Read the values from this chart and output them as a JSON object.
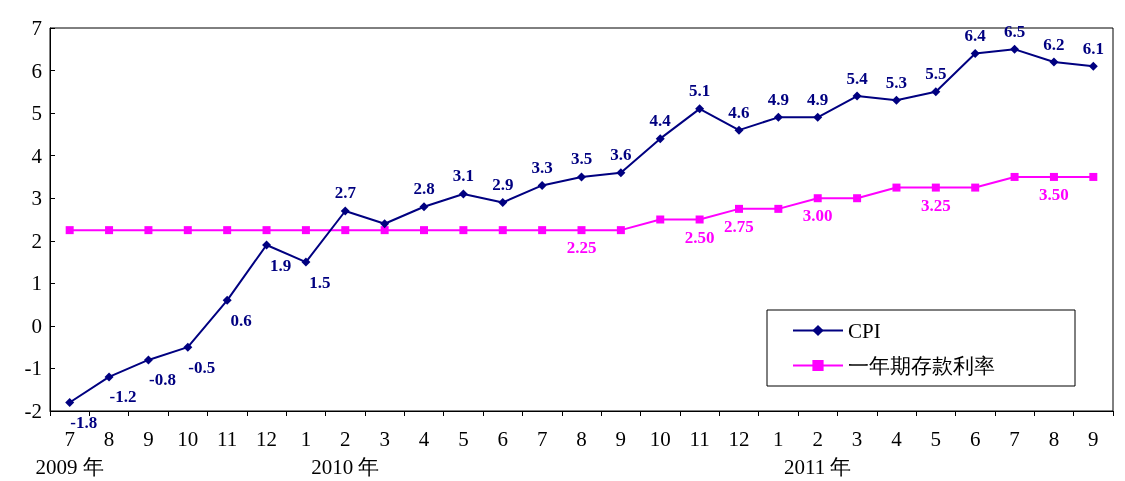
{
  "chart_data": {
    "type": "line",
    "categories": [
      "7\n2009 年",
      "8",
      "9",
      "10",
      "11",
      "12",
      "1",
      "2\n2010 年",
      "3",
      "4",
      "5",
      "6",
      "7",
      "8",
      "9",
      "10",
      "11",
      "12",
      "1",
      "2\n2011 年",
      "3",
      "4",
      "5",
      "6",
      "7",
      "8",
      "9"
    ],
    "series": [
      {
        "name": "CPI",
        "color": "#000080",
        "marker": "diamond",
        "values": [
          -1.8,
          -1.2,
          -0.8,
          -0.5,
          0.6,
          1.9,
          1.5,
          2.7,
          2.4,
          2.8,
          3.1,
          2.9,
          3.3,
          3.5,
          3.6,
          4.4,
          5.1,
          4.6,
          4.9,
          4.9,
          5.4,
          5.3,
          5.5,
          6.4,
          6.5,
          6.2,
          6.1
        ],
        "value_labels": [
          "-1.8",
          "-1.2",
          "-0.8",
          "-0.5",
          "0.6",
          "1.9",
          "1.5",
          "2.7",
          null,
          "2.8",
          "3.1",
          "2.9",
          "3.3",
          "3.5",
          "3.6",
          "4.4",
          "5.1",
          "4.6",
          "4.9",
          "4.9",
          "5.4",
          "5.3",
          "5.5",
          "6.4",
          "6.5",
          "6.2",
          "6.1"
        ]
      },
      {
        "name": "一年期存款利率",
        "color": "#ff00ff",
        "marker": "square",
        "values": [
          2.25,
          2.25,
          2.25,
          2.25,
          2.25,
          2.25,
          2.25,
          2.25,
          2.25,
          2.25,
          2.25,
          2.25,
          2.25,
          2.25,
          2.25,
          2.5,
          2.5,
          2.75,
          2.75,
          3.0,
          3.0,
          3.25,
          3.25,
          3.25,
          3.5,
          3.5,
          3.5
        ],
        "value_labels": [
          null,
          null,
          null,
          null,
          null,
          null,
          null,
          null,
          null,
          null,
          null,
          null,
          null,
          "2.25",
          null,
          null,
          "2.50",
          "2.75",
          null,
          "3.00",
          null,
          null,
          "3.25",
          null,
          null,
          "3.50",
          null
        ]
      }
    ],
    "ylim": [
      -2,
      7
    ],
    "yticks": [
      -2,
      -1,
      0,
      1,
      2,
      3,
      4,
      5,
      6,
      7
    ],
    "grid": false,
    "legend": "bottom right",
    "line_style": "solid"
  }
}
